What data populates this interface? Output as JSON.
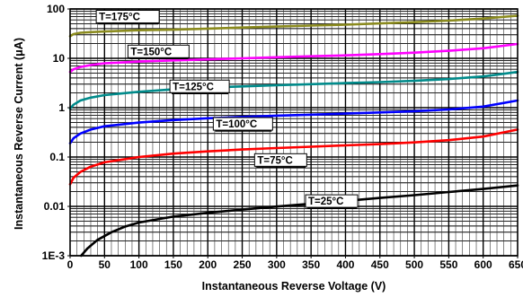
{
  "chart_data": {
    "type": "line",
    "title": "",
    "xlabel": "Instantaneous Reverse Voltage (V)",
    "ylabel": "Instantaneous Reverse Current (μA)",
    "x_scale": "linear",
    "y_scale": "log",
    "xlim": [
      0,
      650
    ],
    "ylim": [
      0.001,
      100
    ],
    "grid": true,
    "x_ticks": [
      "0",
      "50",
      "100",
      "150",
      "200",
      "250",
      "300",
      "350",
      "400",
      "450",
      "500",
      "550",
      "600",
      "650"
    ],
    "y_ticks": [
      "1E-3",
      "0.01",
      "0.1",
      "1",
      "10",
      "100"
    ],
    "y_tick_values": [
      0.001,
      0.01,
      0.1,
      1,
      10,
      100
    ],
    "series": [
      {
        "name": "T=175°C",
        "color": "#8b8b1e",
        "x": [
          0,
          5,
          15,
          30,
          50,
          100,
          150,
          200,
          250,
          300,
          350,
          400,
          450,
          500,
          550,
          600,
          650
        ],
        "y": [
          28,
          31,
          33,
          34,
          35,
          37,
          38,
          40,
          42,
          44,
          46,
          48,
          51,
          54,
          58,
          64,
          73
        ]
      },
      {
        "name": "T=150°C",
        "color": "#ff00ff",
        "x": [
          0,
          5,
          15,
          30,
          50,
          100,
          150,
          200,
          250,
          300,
          350,
          400,
          450,
          500,
          550,
          600,
          650
        ],
        "y": [
          5.3,
          6.0,
          6.7,
          7.3,
          7.9,
          8.6,
          9.1,
          9.5,
          10.0,
          10.5,
          11.0,
          11.5,
          12.2,
          13.0,
          14.2,
          16.0,
          19.5
        ]
      },
      {
        "name": "T=125°C",
        "color": "#008b8b",
        "x": [
          0,
          5,
          15,
          30,
          50,
          100,
          150,
          200,
          250,
          300,
          350,
          400,
          450,
          500,
          550,
          600,
          650
        ],
        "y": [
          0.95,
          1.15,
          1.4,
          1.6,
          1.8,
          2.1,
          2.35,
          2.55,
          2.7,
          2.85,
          3.0,
          3.15,
          3.3,
          3.5,
          3.8,
          4.3,
          5.3
        ]
      },
      {
        "name": "T=100°C",
        "color": "#0000ff",
        "x": [
          0,
          5,
          15,
          30,
          50,
          100,
          150,
          200,
          250,
          300,
          350,
          400,
          450,
          500,
          550,
          600,
          650
        ],
        "y": [
          0.19,
          0.24,
          0.3,
          0.36,
          0.42,
          0.5,
          0.56,
          0.61,
          0.65,
          0.69,
          0.72,
          0.76,
          0.8,
          0.85,
          0.92,
          1.05,
          1.4
        ]
      },
      {
        "name": "T=75°C",
        "color": "#ff0000",
        "x": [
          0,
          5,
          15,
          30,
          50,
          100,
          150,
          200,
          250,
          300,
          350,
          400,
          450,
          500,
          550,
          600,
          650
        ],
        "y": [
          0.028,
          0.038,
          0.05,
          0.064,
          0.078,
          0.1,
          0.117,
          0.13,
          0.142,
          0.152,
          0.162,
          0.172,
          0.183,
          0.198,
          0.22,
          0.26,
          0.36
        ]
      },
      {
        "name": "T=25°C",
        "color": "#000000",
        "x": [
          16,
          25,
          40,
          60,
          80,
          100,
          150,
          200,
          250,
          300,
          350,
          400,
          450,
          500,
          550,
          600,
          650
        ],
        "y": [
          0.001,
          0.0014,
          0.0021,
          0.003,
          0.0039,
          0.0047,
          0.0062,
          0.0074,
          0.0086,
          0.0099,
          0.0113,
          0.0129,
          0.0148,
          0.0169,
          0.0195,
          0.0225,
          0.0265
        ]
      }
    ]
  }
}
